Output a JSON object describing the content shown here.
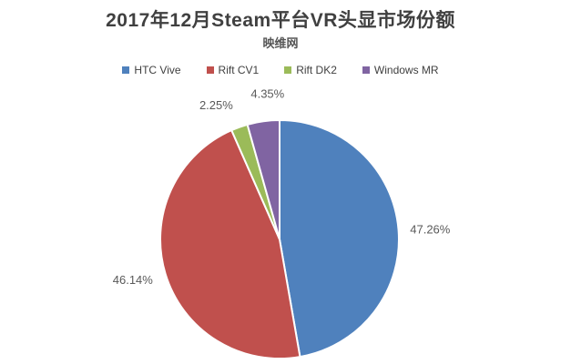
{
  "header": {
    "title": "2017年12月Steam平台VR头显市场份额",
    "subtitle": "映维网"
  },
  "legend": {
    "items": [
      {
        "label": "HTC Vive",
        "color": "#4F81BD"
      },
      {
        "label": "Rift CV1",
        "color": "#C0504D"
      },
      {
        "label": "Rift DK2",
        "color": "#9BBB59"
      },
      {
        "label": "Windows MR",
        "color": "#8064A2"
      }
    ]
  },
  "chart_data": {
    "type": "pie",
    "title": "2017年12月Steam平台VR头显市场份额",
    "subtitle": "映维网",
    "categories": [
      "HTC Vive",
      "Rift CV1",
      "Rift DK2",
      "Windows MR"
    ],
    "values": [
      47.26,
      46.14,
      2.25,
      4.35
    ],
    "labels": [
      "47.26%",
      "46.14%",
      "2.25%",
      "4.35%"
    ],
    "colors": [
      "#4F81BD",
      "#C0504D",
      "#9BBB59",
      "#8064A2"
    ],
    "start_angle_deg": -90,
    "direction": "clockwise",
    "legend_position": "top",
    "label_color": "#595959",
    "slice_border_color": "#FFFFFF",
    "background_color": "#FFFFFF"
  }
}
